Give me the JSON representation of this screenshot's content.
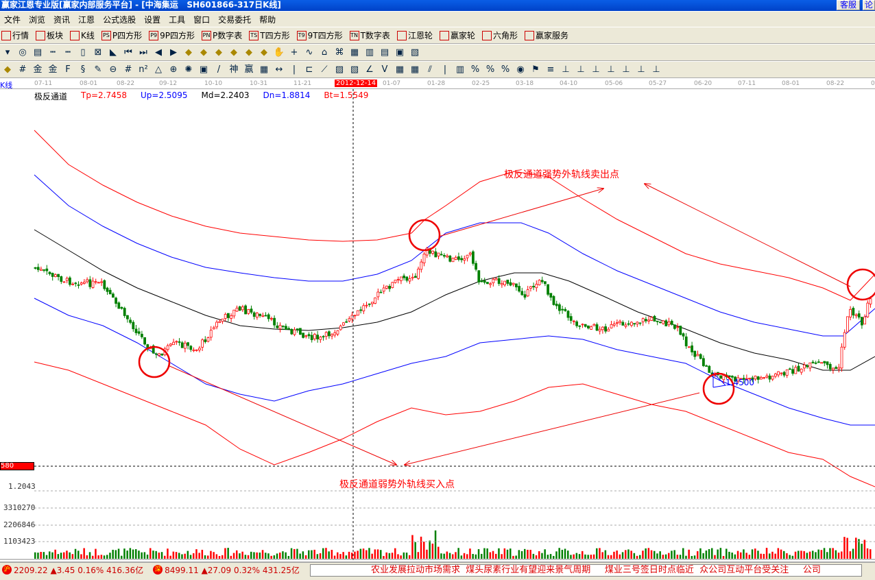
{
  "window": {
    "title": "赢家江恩专业版[赢家内部服务平台] - [中海集运   SH601866-317日K线]",
    "btn_service": "客服",
    "btn_forum": "论"
  },
  "menu": [
    "文件",
    "浏览",
    "资讯",
    "江恩",
    "公式选股",
    "设置",
    "工具",
    "窗口",
    "交易委托",
    "帮助"
  ],
  "toolbar1": [
    {
      "icon": "quote-icon",
      "label": "行情"
    },
    {
      "icon": "sector-icon",
      "label": "板块"
    },
    {
      "icon": "kline-icon",
      "label": "K线"
    },
    {
      "icon": "PS",
      "label": "P四方形"
    },
    {
      "icon": "P9",
      "label": "9P四方形"
    },
    {
      "icon": "PN",
      "label": "P数字表"
    },
    {
      "icon": "TS",
      "label": "T四方形"
    },
    {
      "icon": "T9",
      "label": "9T四方形"
    },
    {
      "icon": "TN",
      "label": "T数字表"
    },
    {
      "icon": "gann-wheel-icon",
      "label": "江恩轮"
    },
    {
      "icon": "winner-wheel-icon",
      "label": "赢家轮"
    },
    {
      "icon": "hexagon-icon",
      "label": "六角形"
    },
    {
      "icon": "dollar-icon",
      "label": "赢家服务"
    }
  ],
  "kline_label": "K线",
  "date_axis": [
    "07-11",
    "08-01",
    "08-22",
    "09-12",
    "10-10",
    "10-31",
    "11-21",
    "2012-12-14",
    "01-07",
    "01-28",
    "02-25",
    "03-18",
    "04-10",
    "05-06",
    "05-27",
    "06-20",
    "07-11",
    "08-01",
    "08-22",
    "0"
  ],
  "indicator": {
    "name": "极反通道",
    "tp": "Tp=2.7458",
    "up": "Up=2.5095",
    "md": "Md=2.2403",
    "dn": "Dn=1.8814",
    "bt": "Bt=1.5549"
  },
  "annotations": {
    "sell": "极反通道强势外轨线卖出点",
    "buy": "极反通道弱势外轨线买入点",
    "price_mark": "1.4500"
  },
  "axis": {
    "cursor_price": "580",
    "low_price": "1.2043",
    "vol1": "3310270",
    "vol2": "2206846",
    "vol3": "1103423"
  },
  "colors": {
    "up": "#ff0000",
    "down": "#008000",
    "upper_band": "#0000ff",
    "outer_band": "#ff0000",
    "middle": "#000000"
  },
  "status": {
    "sh_icon": "沪",
    "sh": "2209.22 ▲3.45 0.16% 416.36亿",
    "sz_icon": "深",
    "sz": "8499.11 ▲27.09 0.32% 431.25亿",
    "ticker": "农业发展拉动市场需求  煤头尿素行业有望迎来景气周期     煤业三号签日时点临近  众公司互动平台受关注     公司"
  }
}
